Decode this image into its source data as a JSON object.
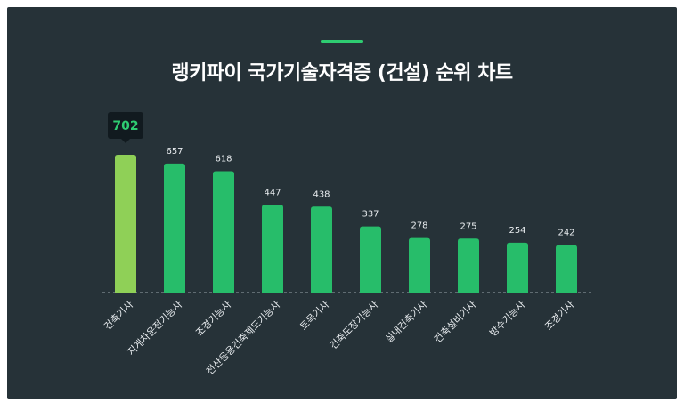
{
  "title": "랭키파이 국가기술자격증 (건설) 순위 차트",
  "colors": {
    "background": "#263238",
    "accent": "#2ecc71",
    "bar": "#27bd6a",
    "highlight_bar": "#8fd057",
    "tooltip_bg": "#111a1f",
    "tooltip_text": "#2ecc71",
    "label_text": "#e8ecef",
    "baseline": "#9aa5ab"
  },
  "chart_data": {
    "type": "bar",
    "title": "랭키파이 국가기술자격증 (건설) 순위 차트",
    "categories": [
      "건축기사",
      "지게차운전기능사",
      "조경기능사",
      "전산응용건축제도기능사",
      "토목기사",
      "건축도장기능사",
      "실내건축기사",
      "건축설비기사",
      "방수기능사",
      "조경기사"
    ],
    "values": [
      702,
      657,
      618,
      447,
      438,
      337,
      278,
      275,
      254,
      242
    ],
    "highlight_index": 0,
    "ylim": [
      0,
      702
    ],
    "grid": false,
    "legend": "none"
  }
}
